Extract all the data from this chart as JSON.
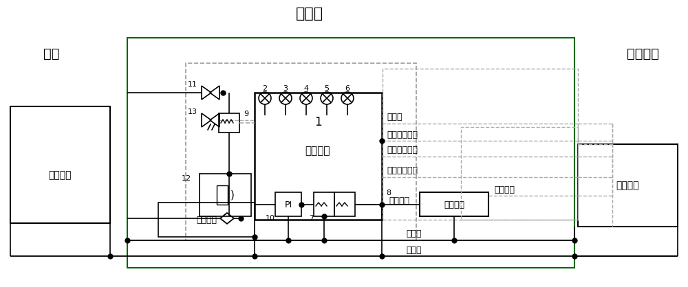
{
  "title": "回送车",
  "left_label": "机车",
  "right_label": "地铁列车",
  "left_box_label": "制动系统",
  "right_box_label": "制动系统",
  "inner_brake_label": "制动系统",
  "monitor_label": "监控装置",
  "monitor_num": "1",
  "huisong_label": "回送装置",
  "signal_labels": [
    "供电线",
    "紧急制动控制",
    "制动缓解状态",
    "停放制动状态",
    "制动缸管",
    "总风管",
    "列车管"
  ],
  "brake_cmd_label": "制动指令",
  "lamp_nums": [
    "2",
    "3",
    "4",
    "5",
    "6"
  ],
  "comp_nums": {
    "n9": "9",
    "n11": "11",
    "n12": "12",
    "n13": "13",
    "n8": "8",
    "n10": "10",
    "n7": "7"
  }
}
